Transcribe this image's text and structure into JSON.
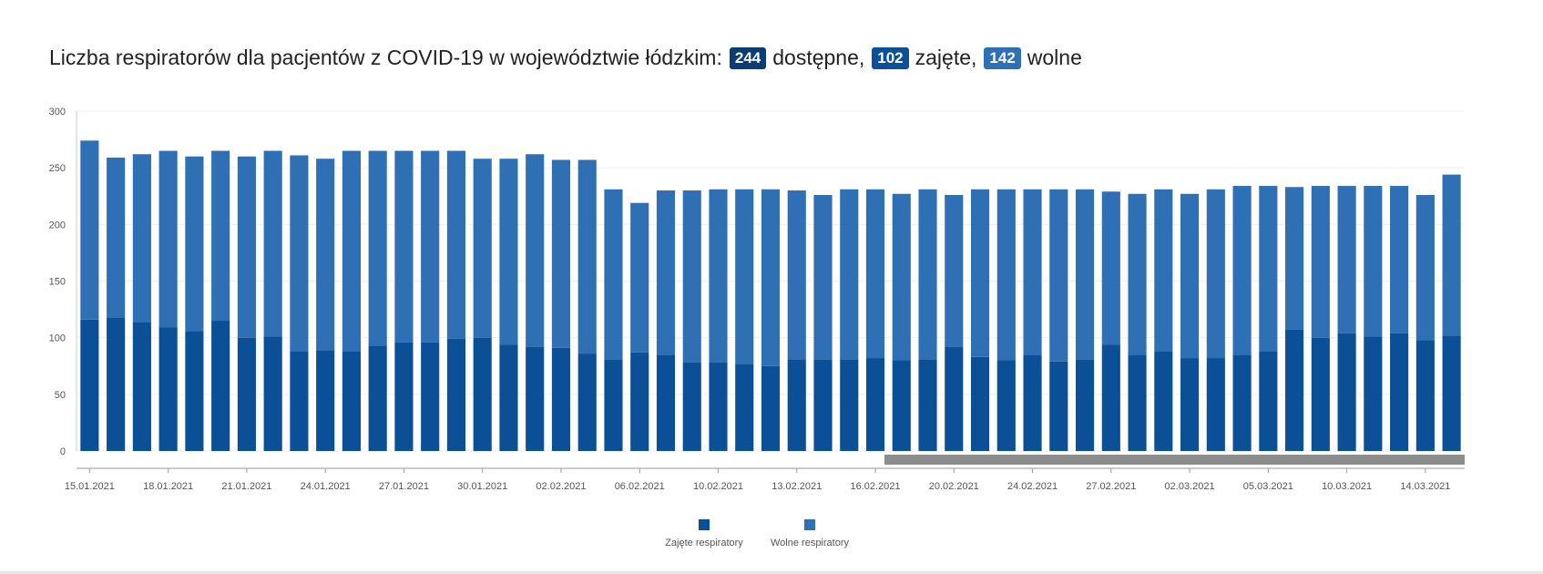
{
  "title": {
    "prefix": "Liczba respiratorów dla pacjentów z COVID-19 w województwie łódzkim:",
    "available_value": "244",
    "available_label": "dostępne,",
    "occupied_value": "102",
    "occupied_label": "zajęte,",
    "free_value": "142",
    "free_label": "wolne"
  },
  "colors": {
    "occupied": "#0b4f96",
    "free": "#2f6fb3",
    "badge_available": "#0a3d74",
    "scrollbar": "#8c8c8c"
  },
  "chart_data": {
    "type": "bar",
    "stacked": true,
    "ylim": [
      0,
      300
    ],
    "yticks": [
      0,
      50,
      100,
      150,
      200,
      250,
      300
    ],
    "xtick_labels": [
      "15.01.2021",
      "18.01.2021",
      "21.01.2021",
      "24.01.2021",
      "27.01.2021",
      "30.01.2021",
      "02.02.2021",
      "06.02.2021",
      "10.02.2021",
      "13.02.2021",
      "16.02.2021",
      "20.02.2021",
      "24.02.2021",
      "27.02.2021",
      "02.03.2021",
      "05.03.2021",
      "10.03.2021",
      "14.03.2021"
    ],
    "xtick_bar_index": [
      0,
      3,
      6,
      9,
      12,
      15,
      18,
      21,
      24,
      27,
      30,
      33,
      36,
      39,
      42,
      45,
      48,
      51
    ],
    "totals": [
      274,
      259,
      262,
      265,
      260,
      265,
      260,
      265,
      261,
      258,
      265,
      265,
      265,
      265,
      265,
      258,
      258,
      262,
      257,
      257,
      231,
      219,
      230,
      230,
      231,
      231,
      231,
      230,
      226,
      231,
      231,
      227,
      231,
      226,
      231,
      231,
      231,
      231,
      231,
      229,
      227,
      231,
      227,
      231,
      234,
      234,
      233,
      234,
      234,
      234,
      234,
      226,
      244
    ],
    "series": [
      {
        "name": "Zajęte respiratory",
        "values": [
          116,
          118,
          114,
          109,
          106,
          115,
          100,
          101,
          88,
          89,
          88,
          93,
          96,
          96,
          99,
          100,
          94,
          92,
          91,
          86,
          81,
          87,
          85,
          78,
          78,
          77,
          75,
          81,
          81,
          81,
          82,
          80,
          81,
          92,
          83,
          80,
          85,
          79,
          81,
          94,
          85,
          88,
          82,
          82,
          85,
          88,
          107,
          100,
          104,
          101,
          104,
          98,
          102
        ]
      },
      {
        "name": "Wolne respiratory",
        "values": [
          158,
          141,
          148,
          156,
          154,
          150,
          160,
          164,
          173,
          169,
          177,
          172,
          169,
          169,
          166,
          158,
          164,
          170,
          166,
          171,
          150,
          132,
          145,
          152,
          153,
          154,
          156,
          149,
          145,
          150,
          149,
          147,
          150,
          134,
          148,
          151,
          146,
          152,
          150,
          135,
          142,
          143,
          145,
          149,
          149,
          146,
          126,
          134,
          130,
          133,
          130,
          128,
          142
        ]
      }
    ],
    "legend": [
      "Zajęte respiratory",
      "Wolne respiratory"
    ],
    "legend_position": "bottom-center",
    "grid": true,
    "scrollbar_range": [
      0.582,
      1.0
    ]
  }
}
